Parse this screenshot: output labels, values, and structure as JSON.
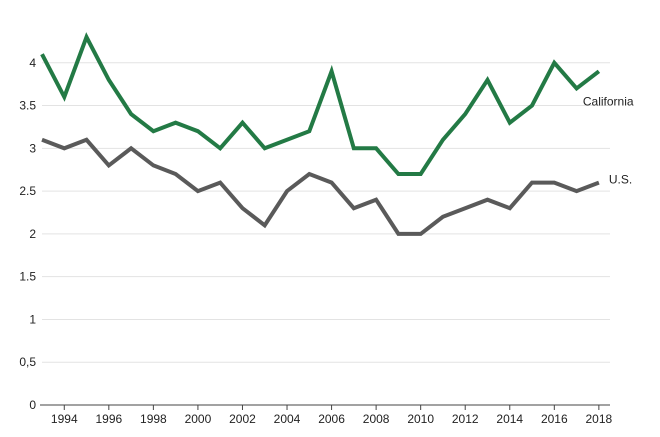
{
  "chart_data": {
    "type": "line",
    "title": "",
    "xlabel": "",
    "ylabel": "",
    "x": [
      1993,
      1994,
      1995,
      1996,
      1997,
      1998,
      1999,
      2000,
      2001,
      2002,
      2003,
      2004,
      2005,
      2006,
      2007,
      2008,
      2009,
      2010,
      2011,
      2012,
      2013,
      2014,
      2015,
      2016,
      2017,
      2018
    ],
    "xlim": [
      1993,
      2018.5
    ],
    "ylim": [
      0,
      4.5
    ],
    "x_tick_values": [
      1994,
      1996,
      1998,
      2000,
      2002,
      2004,
      2006,
      2008,
      2010,
      2012,
      2014,
      2016,
      2018
    ],
    "x_tick_labels": [
      "1994",
      "1996",
      "1998",
      "2000",
      "2002",
      "2004",
      "2006",
      "2008",
      "2010",
      "2012",
      "2014",
      "2016",
      "2018"
    ],
    "y_tick_values": [
      0,
      0.5,
      1,
      1.5,
      2,
      2.5,
      3,
      3.5,
      4
    ],
    "y_tick_labels": [
      "0",
      "0,5",
      "1",
      "1.5",
      "2",
      "2.5",
      "3",
      "3.5",
      "4"
    ],
    "grid": "horizontal",
    "legend": "direct labels at right end of lines",
    "series": [
      {
        "name": "California",
        "color": "#237a45",
        "values": [
          4.1,
          3.6,
          4.3,
          3.8,
          3.4,
          3.2,
          3.3,
          3.2,
          3.0,
          3.3,
          3.0,
          3.1,
          3.2,
          3.9,
          3.0,
          3.0,
          2.7,
          2.7,
          3.1,
          3.4,
          3.8,
          3.3,
          3.5,
          4.0,
          3.7,
          3.9
        ]
      },
      {
        "name": "U.S.",
        "color": "#5a5a5a",
        "values": [
          3.1,
          3.0,
          3.1,
          2.8,
          3.0,
          2.8,
          2.7,
          2.5,
          2.6,
          2.3,
          2.1,
          2.5,
          2.7,
          2.6,
          2.3,
          2.4,
          2.0,
          2.0,
          2.2,
          2.3,
          2.4,
          2.3,
          2.6,
          2.6,
          2.5,
          2.6
        ]
      }
    ]
  }
}
